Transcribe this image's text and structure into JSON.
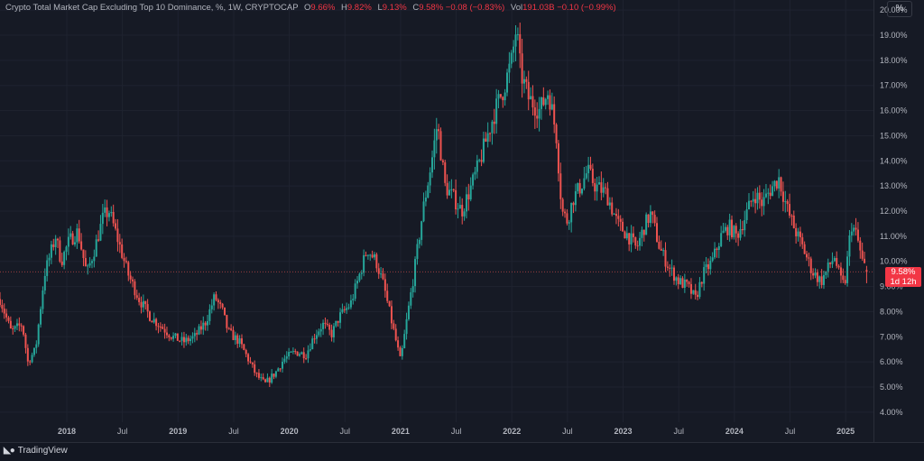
{
  "legend": {
    "title": "Crypto Total Market Cap Excluding Top 10 Dominance, %, 1W, CRYPTOCAP",
    "open_label": "O",
    "open": "9.66%",
    "high_label": "H",
    "high": "9.82%",
    "low_label": "L",
    "low": "9.13%",
    "close_label": "C",
    "close": "9.58%",
    "change": "−0.08 (−0.83%)",
    "vol_label": "Vol",
    "vol": "191.03B",
    "vol_change": "−0.10 (−0.99%)"
  },
  "scale_button": "%",
  "price_label": {
    "value": "9.58%",
    "countdown": "1d 12h"
  },
  "footer": {
    "brand": "TradingView",
    "logo_icon": "tradingview-logo-icon"
  },
  "colors": {
    "background": "#161a25",
    "up": "#26a69a",
    "down": "#ef5350",
    "grid": "#1f2330",
    "axis_text": "#b2b5be",
    "price_label_bg": "#f23645"
  },
  "chart_data": {
    "type": "candlestick",
    "title": "Crypto Total Market Cap Excluding Top 10 Dominance, %, 1W, CRYPTOCAP",
    "ylim": [
      3.6,
      20.4
    ],
    "y_ticks": [
      "20.00%",
      "19.00%",
      "18.00%",
      "17.00%",
      "16.00%",
      "15.00%",
      "14.00%",
      "13.00%",
      "12.00%",
      "11.00%",
      "10.00%",
      "9.00%",
      "8.00%",
      "7.00%",
      "6.00%",
      "5.00%",
      "4.00%"
    ],
    "y_tick_values": [
      20,
      19,
      18,
      17,
      16,
      15,
      14,
      13,
      12,
      11,
      10,
      9,
      8,
      7,
      6,
      5,
      4
    ],
    "xlim": [
      2017.4,
      2025.25
    ],
    "x_ticks": [
      {
        "label": "2018",
        "t": 2018.0
      },
      {
        "label": "Jul",
        "t": 2018.5
      },
      {
        "label": "2019",
        "t": 2019.0
      },
      {
        "label": "Jul",
        "t": 2019.5
      },
      {
        "label": "2020",
        "t": 2020.0
      },
      {
        "label": "Jul",
        "t": 2020.5
      },
      {
        "label": "2021",
        "t": 2021.0
      },
      {
        "label": "Jul",
        "t": 2021.5
      },
      {
        "label": "2022",
        "t": 2022.0
      },
      {
        "label": "Jul",
        "t": 2022.5
      },
      {
        "label": "2023",
        "t": 2023.0
      },
      {
        "label": "Jul",
        "t": 2023.5
      },
      {
        "label": "2024",
        "t": 2024.0
      },
      {
        "label": "Jul",
        "t": 2024.5
      },
      {
        "label": "2025",
        "t": 2025.0
      }
    ],
    "grid": true,
    "last_close": 9.58,
    "path_points": [
      [
        2017.4,
        8.5
      ],
      [
        2017.5,
        7.2
      ],
      [
        2017.6,
        7.5
      ],
      [
        2017.65,
        6.0
      ],
      [
        2017.72,
        6.5
      ],
      [
        2017.8,
        9.5
      ],
      [
        2017.9,
        11.0
      ],
      [
        2017.95,
        10.0
      ],
      [
        2018.02,
        10.8
      ],
      [
        2018.1,
        11.2
      ],
      [
        2018.18,
        9.5
      ],
      [
        2018.25,
        10.5
      ],
      [
        2018.33,
        11.8
      ],
      [
        2018.38,
        12.0
      ],
      [
        2018.45,
        11.0
      ],
      [
        2018.55,
        9.5
      ],
      [
        2018.65,
        8.5
      ],
      [
        2018.75,
        7.8
      ],
      [
        2018.85,
        7.4
      ],
      [
        2018.95,
        7.0
      ],
      [
        2019.05,
        6.8
      ],
      [
        2019.15,
        7.0
      ],
      [
        2019.25,
        7.6
      ],
      [
        2019.33,
        8.6
      ],
      [
        2019.4,
        8.0
      ],
      [
        2019.45,
        7.2
      ],
      [
        2019.55,
        6.8
      ],
      [
        2019.62,
        6.2
      ],
      [
        2019.7,
        5.5
      ],
      [
        2019.78,
        5.1
      ],
      [
        2019.88,
        5.6
      ],
      [
        2019.95,
        6.1
      ],
      [
        2020.05,
        6.4
      ],
      [
        2020.15,
        6.3
      ],
      [
        2020.22,
        7.0
      ],
      [
        2020.3,
        7.5
      ],
      [
        2020.38,
        7.1
      ],
      [
        2020.45,
        7.8
      ],
      [
        2020.55,
        8.3
      ],
      [
        2020.62,
        9.3
      ],
      [
        2020.7,
        10.5
      ],
      [
        2020.78,
        10.0
      ],
      [
        2020.85,
        9.0
      ],
      [
        2020.9,
        8.0
      ],
      [
        2020.95,
        7.0
      ],
      [
        2021.0,
        6.0
      ],
      [
        2021.05,
        7.5
      ],
      [
        2021.12,
        9.5
      ],
      [
        2021.2,
        12.0
      ],
      [
        2021.28,
        14.0
      ],
      [
        2021.33,
        15.5
      ],
      [
        2021.4,
        13.0
      ],
      [
        2021.48,
        12.5
      ],
      [
        2021.55,
        12.0
      ],
      [
        2021.62,
        12.8
      ],
      [
        2021.7,
        13.8
      ],
      [
        2021.78,
        15.0
      ],
      [
        2021.85,
        16.0
      ],
      [
        2021.92,
        16.8
      ],
      [
        2022.0,
        18.0
      ],
      [
        2022.04,
        19.3
      ],
      [
        2022.08,
        17.5
      ],
      [
        2022.15,
        16.5
      ],
      [
        2022.25,
        16.0
      ],
      [
        2022.33,
        16.8
      ],
      [
        2022.4,
        15.0
      ],
      [
        2022.45,
        12.0
      ],
      [
        2022.5,
        11.6
      ],
      [
        2022.55,
        12.5
      ],
      [
        2022.62,
        13.0
      ],
      [
        2022.68,
        13.6
      ],
      [
        2022.75,
        13.0
      ],
      [
        2022.85,
        12.7
      ],
      [
        2022.95,
        11.5
      ],
      [
        2023.05,
        11.0
      ],
      [
        2023.12,
        10.5
      ],
      [
        2023.2,
        11.5
      ],
      [
        2023.25,
        11.9
      ],
      [
        2023.33,
        10.5
      ],
      [
        2023.42,
        9.7
      ],
      [
        2023.5,
        9.2
      ],
      [
        2023.58,
        9.0
      ],
      [
        2023.65,
        8.5
      ],
      [
        2023.72,
        9.5
      ],
      [
        2023.8,
        10.0
      ],
      [
        2023.88,
        11.0
      ],
      [
        2023.95,
        11.4
      ],
      [
        2024.02,
        11.0
      ],
      [
        2024.1,
        11.8
      ],
      [
        2024.18,
        12.7
      ],
      [
        2024.25,
        12.3
      ],
      [
        2024.33,
        12.9
      ],
      [
        2024.4,
        13.3
      ],
      [
        2024.48,
        12.0
      ],
      [
        2024.55,
        11.2
      ],
      [
        2024.62,
        10.5
      ],
      [
        2024.7,
        9.6
      ],
      [
        2024.78,
        9.2
      ],
      [
        2024.85,
        9.8
      ],
      [
        2024.9,
        10.2
      ],
      [
        2024.95,
        9.3
      ],
      [
        2024.99,
        9.0
      ],
      [
        2025.05,
        11.5
      ],
      [
        2025.1,
        11.0
      ],
      [
        2025.15,
        10.0
      ],
      [
        2025.19,
        9.58
      ]
    ]
  }
}
